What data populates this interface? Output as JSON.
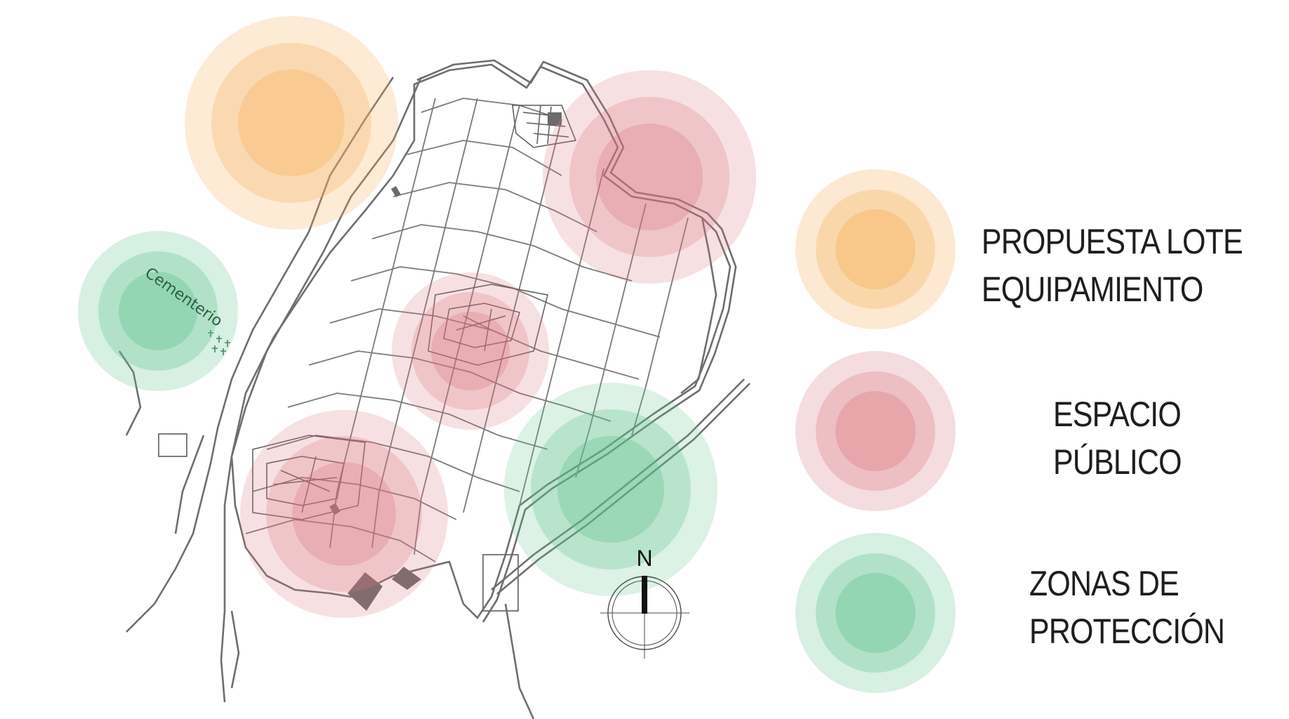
{
  "map": {
    "cemetery_label": "Cementerio",
    "north_label": "N"
  },
  "legend": [
    {
      "id": "orange",
      "lines": [
        "PROPUESTA LOTE",
        "EQUIPAMIENTO"
      ],
      "color": "#f7b05b"
    },
    {
      "id": "red",
      "lines": [
        "ESPACIO",
        "PÚBLICO"
      ],
      "color": "#d9747a"
    },
    {
      "id": "green",
      "lines": [
        "ZONAS DE",
        "PROTECCIÓN"
      ],
      "color": "#5cc28a"
    }
  ],
  "colors": {
    "orange": "#f7b05b",
    "red": "#d9747a",
    "green": "#5cc28a",
    "streets": "#6e6e6e",
    "blocks": "#555555"
  }
}
